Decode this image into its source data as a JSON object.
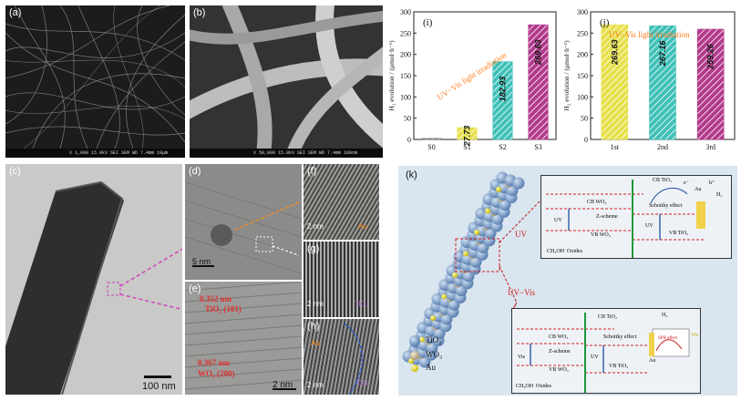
{
  "panels": {
    "a": {
      "label": "(a)",
      "sem_info": "X 1,000   15.0kV SEI   SEM   WD 7.4mm   10μm"
    },
    "b": {
      "label": "(b)",
      "sem_info": "X 50,000   15.0kV SEI   SEM   WD 7.4mm   100nm"
    },
    "c": {
      "label": "(c)",
      "scale": "100 nm"
    },
    "d": {
      "label": "(d)",
      "scale": "5 nm"
    },
    "e": {
      "label": "(e)",
      "scale": "2 nm",
      "ann1_line1": "0.352 nm",
      "ann1_line2": "TiO₂ (101)",
      "ann2_line1": "0.367 nm",
      "ann2_line2": "WO₃ (200)"
    },
    "f": {
      "label": "(f)",
      "scale": "2 nm",
      "tag": "Au"
    },
    "g": {
      "label": "(g)",
      "scale": "2 nm",
      "tag": "TiO₂"
    },
    "h": {
      "label": "(h)",
      "scale": "2 nm",
      "tag_au": "Au",
      "tag_tio2": "TiO₂"
    },
    "k": {
      "label": "(k)",
      "uv_label": "UV",
      "uvvis_label": "UV−Vis",
      "legend": {
        "tio2": "TiO₂",
        "wo3": "WO₃",
        "au": "Au"
      },
      "inset_top": {
        "cb_tio2": "CB TiO₂",
        "vb_tio2": "VB TiO₂",
        "cb_wo3": "CB WO₃",
        "vb_wo3": "VB WO₃",
        "z_scheme": "Z-scheme",
        "schottky": "Schottky effect",
        "au": "Au",
        "h_plus": "h⁺",
        "e_minus": "e⁻",
        "h2": "H₂",
        "uv1": "UV",
        "uv2": "UV",
        "ch3oh": "CH₃OH",
        "oxides": "Oxides"
      },
      "inset_bottom": {
        "cb_tio2": "CB TiO₂",
        "vb_tio2": "VB TiO₂",
        "cb_wo3": "CB WO₃",
        "vb_wo3": "VB WO₃",
        "z_scheme": "Z-scheme",
        "schottky": "Schottky effect",
        "au": "Au",
        "spr": "SPR effect",
        "vis1": "Vis",
        "vis2": "Vis",
        "uv": "UV",
        "h2": "H₂",
        "ch3oh": "CH₃OH",
        "oxides": "Oxides"
      }
    }
  },
  "chart_data": [
    {
      "panel": "(i)",
      "type": "bar",
      "categories": [
        "S0",
        "S1",
        "S2",
        "S3"
      ],
      "values": [
        0,
        27.73,
        182.93,
        269.63
      ],
      "value_labels": [
        "",
        "27.73",
        "182.93",
        "269.63"
      ],
      "ylabel": "H₂ evolution / (μmol·h⁻¹)",
      "ylim": [
        0,
        300
      ],
      "yticks": [
        0,
        50,
        100,
        150,
        200,
        250,
        300
      ],
      "annotation": "UV−Vis light irradiation",
      "colors": [
        "#7f7f7f",
        "#e6e04a",
        "#3fc0b8",
        "#b23a8c"
      ]
    },
    {
      "panel": "(j)",
      "type": "bar",
      "categories": [
        "1st",
        "2nd",
        "3rd"
      ],
      "values": [
        269.63,
        267.16,
        259.26
      ],
      "value_labels": [
        "269.63",
        "267.16",
        "259.26"
      ],
      "ylabel": "H₂ evolution / (μmol·h⁻¹)",
      "ylim": [
        0,
        300
      ],
      "yticks": [
        0,
        50,
        100,
        150,
        200,
        250,
        300
      ],
      "annotation": "UV−Vis light irradiation",
      "colors": [
        "#e6e04a",
        "#3fc0b8",
        "#b23a8c"
      ]
    }
  ]
}
